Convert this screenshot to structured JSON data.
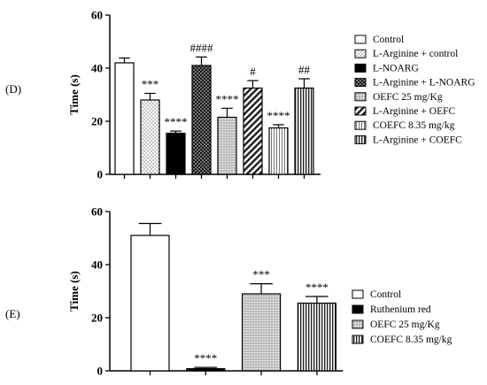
{
  "chart_data": [
    {
      "panel_label": "(D)",
      "type": "bar",
      "ylabel": "Time (s)",
      "ylim": [
        0,
        60
      ],
      "yticks": [
        0,
        20,
        40,
        60
      ],
      "categories": [
        "Control",
        "L-Arginine + control",
        "L-NOARG",
        "L-Arginine + L-NOARG",
        "OEFC 25 mg/Kg",
        "L-Arginine + OEFC",
        "COEFC 8.35 mg/kg",
        "L-Arginine + COEFC"
      ],
      "values": [
        42,
        28,
        15.5,
        41,
        21.5,
        32.5,
        17.5,
        32.5
      ],
      "errors": [
        1.8,
        2.5,
        0.8,
        3.2,
        3.4,
        2.8,
        1.2,
        3.5
      ],
      "annotations": [
        "",
        "***",
        "****",
        "####",
        "****",
        "#",
        "****",
        "##"
      ],
      "patterns": [
        "white",
        "dots",
        "black",
        "checker",
        "dense-dots",
        "diag",
        "vstripes-light",
        "vstripes"
      ],
      "legend": [
        "Control",
        "L-Arginine + control",
        "L-NOARG",
        "L-Arginine + L-NOARG",
        "OEFC 25 mg/Kg",
        "L-Arginine + OEFC",
        "COEFC 8.35 mg/kg",
        "L-Arginine + COEFC"
      ],
      "legend_position": "right"
    },
    {
      "panel_label": "(E)",
      "type": "bar",
      "ylabel": "Time (s)",
      "ylim": [
        0,
        60
      ],
      "yticks": [
        0,
        20,
        40,
        60
      ],
      "categories": [
        "Control",
        "Ruthenium red",
        "OEFC 25 mg/Kg",
        "COEFC 8.35 mg/kg"
      ],
      "values": [
        51,
        0.8,
        29,
        25.5
      ],
      "errors": [
        4.5,
        0.5,
        3.8,
        2.5
      ],
      "annotations": [
        "",
        "****",
        "***",
        "****"
      ],
      "patterns": [
        "white",
        "black",
        "dense-dots",
        "vstripes"
      ],
      "legend": [
        "Control",
        "Ruthenium red",
        "OEFC 25 mg/Kg",
        "COEFC 8.35 mg/kg"
      ],
      "legend_position": "right"
    }
  ]
}
